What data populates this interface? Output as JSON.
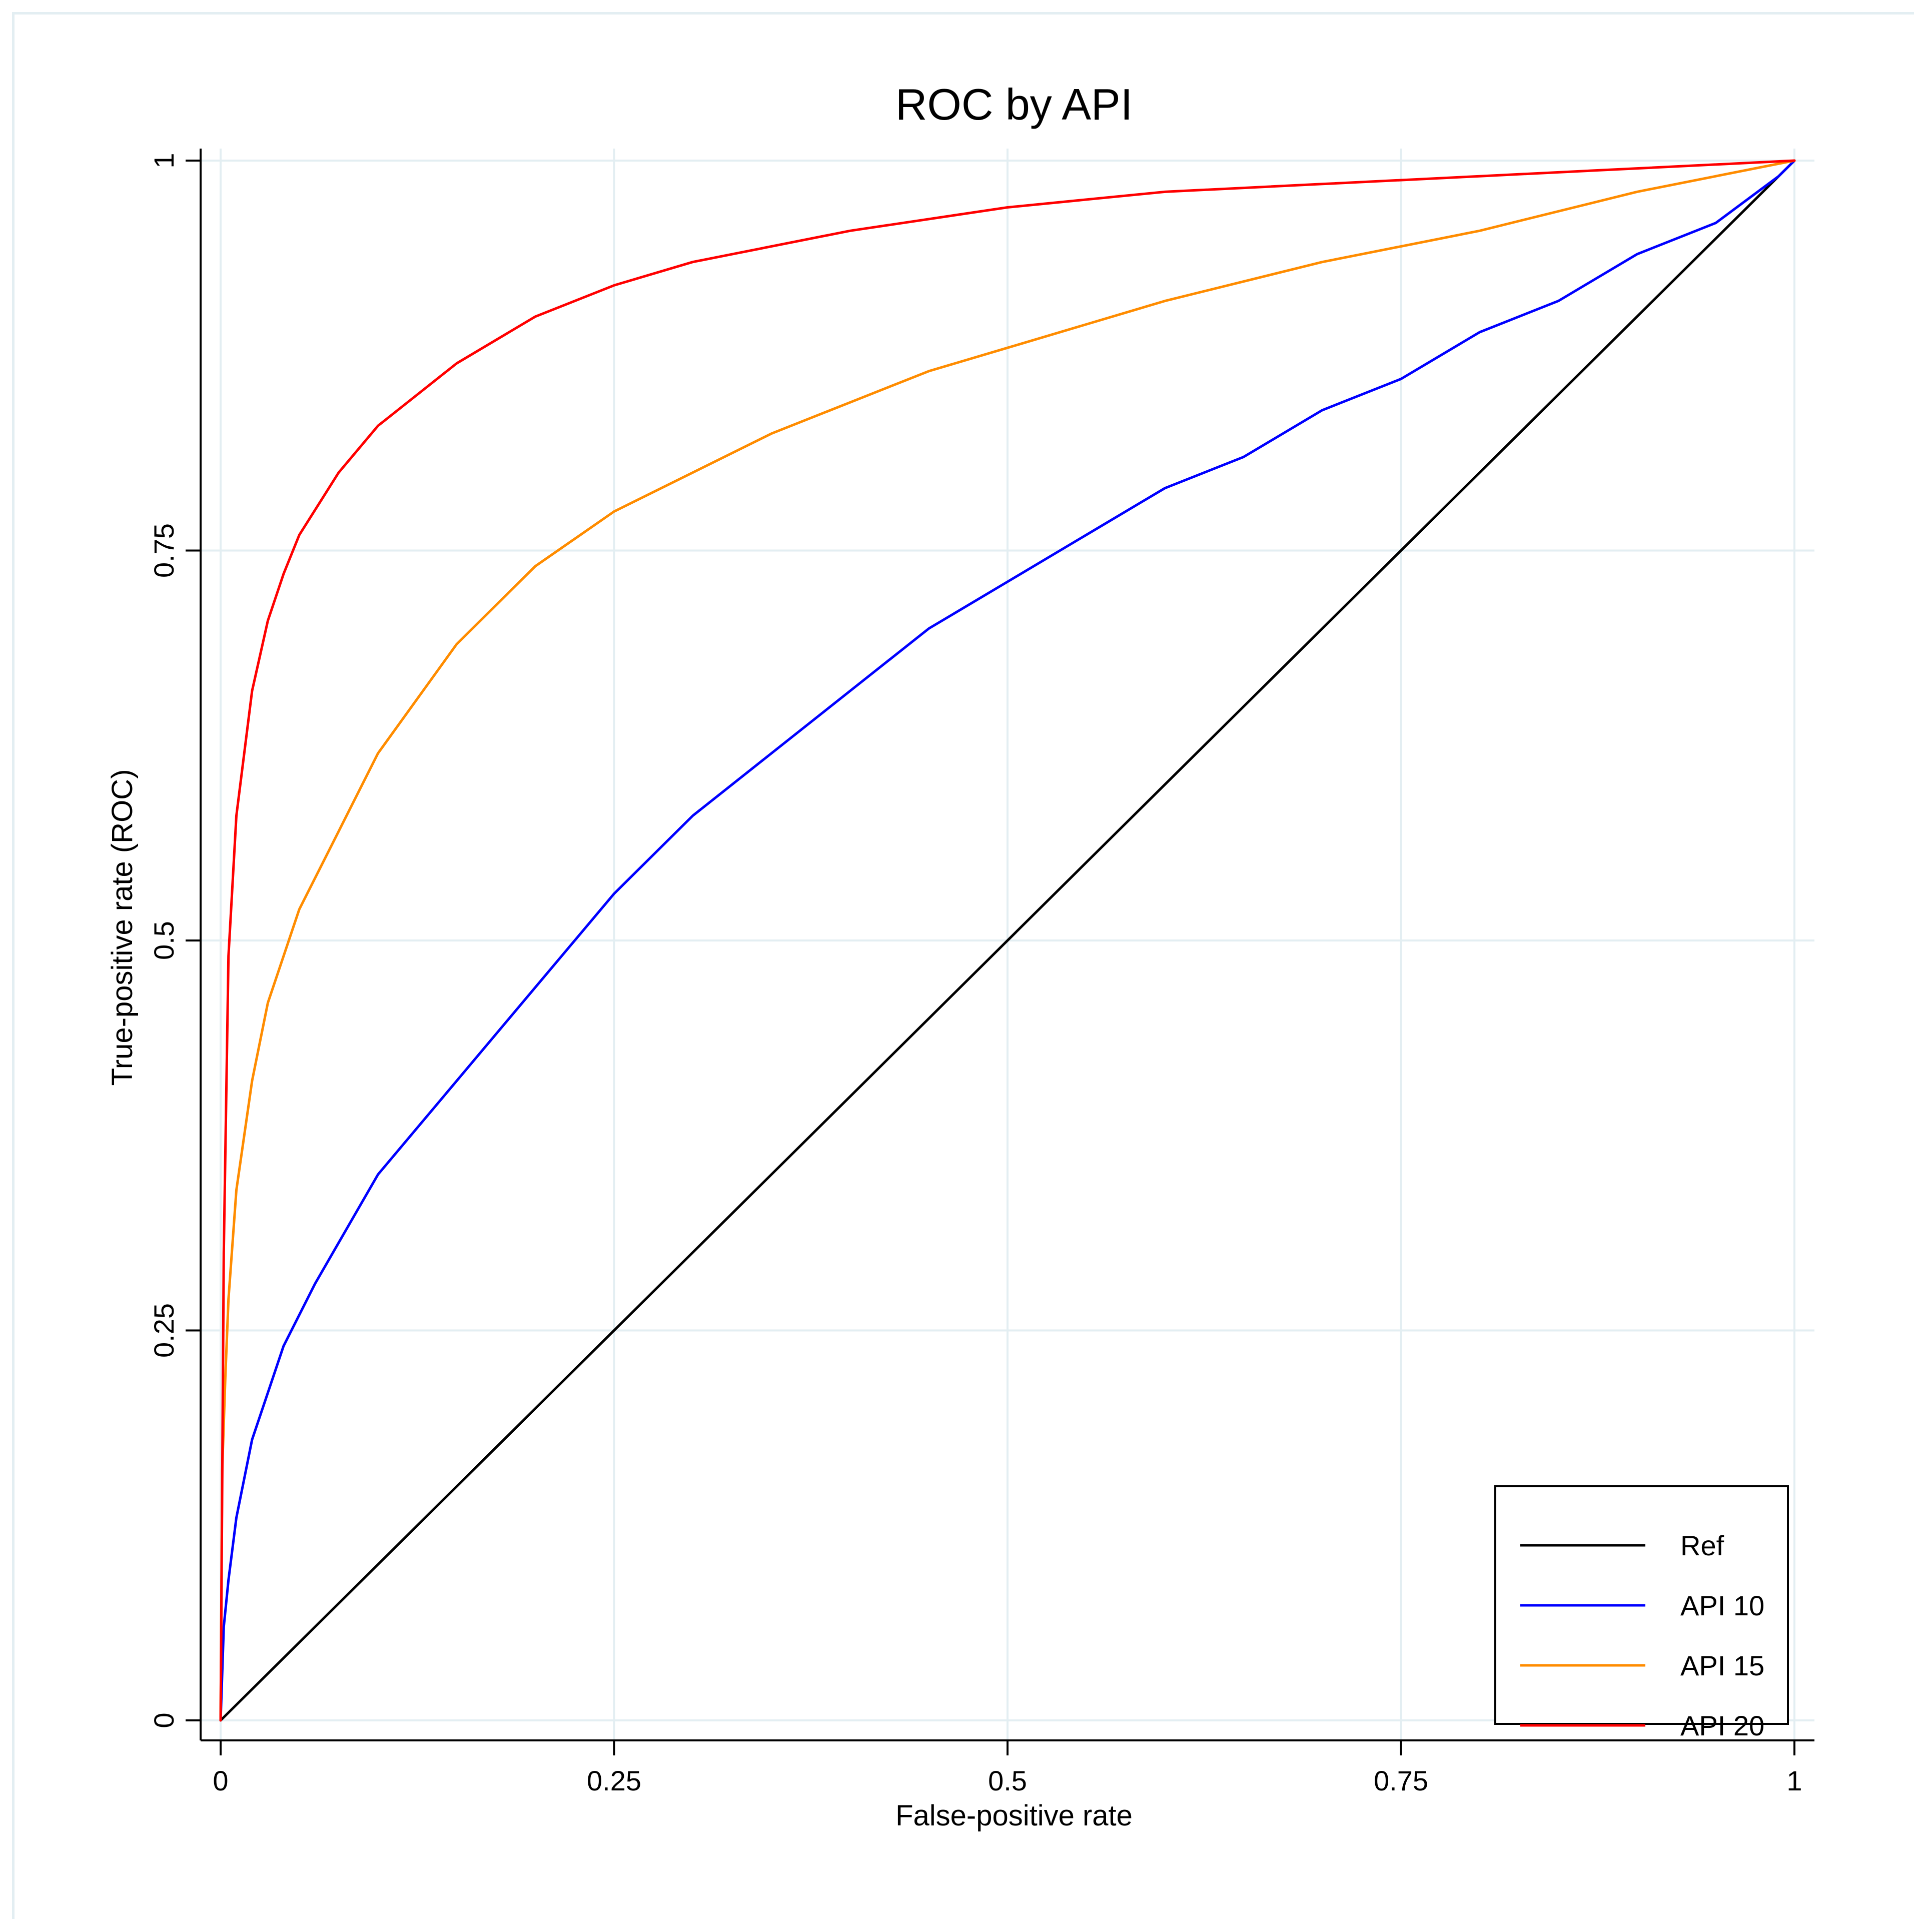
{
  "chart_data": {
    "type": "line",
    "title": "ROC by API",
    "xlabel": "False-positive rate",
    "ylabel": "True-positive rate (ROC)",
    "xlim": [
      0,
      1
    ],
    "ylim": [
      0,
      1
    ],
    "xticks": [
      0,
      0.25,
      0.5,
      0.75,
      1
    ],
    "xtick_labels": [
      "0",
      "0.25",
      "0.5",
      "0.75",
      "1"
    ],
    "yticks": [
      0,
      0.25,
      0.5,
      0.75,
      1
    ],
    "ytick_labels": [
      "0",
      "0.25",
      "0.5",
      "0.75",
      "1"
    ],
    "grid": true,
    "legend_position": "bottom-right",
    "series": [
      {
        "name": "Ref",
        "color": "#000000",
        "x": [
          0,
          1
        ],
        "y": [
          0,
          1
        ]
      },
      {
        "name": "API 10",
        "color": "#0000ff",
        "x": [
          0,
          0.002,
          0.005,
          0.01,
          0.02,
          0.04,
          0.06,
          0.1,
          0.15,
          0.2,
          0.25,
          0.3,
          0.35,
          0.4,
          0.45,
          0.5,
          0.55,
          0.6,
          0.65,
          0.7,
          0.75,
          0.8,
          0.85,
          0.9,
          0.95,
          0.99,
          1
        ],
        "y": [
          0,
          0.06,
          0.09,
          0.13,
          0.18,
          0.24,
          0.28,
          0.35,
          0.41,
          0.47,
          0.53,
          0.58,
          0.62,
          0.66,
          0.7,
          0.73,
          0.76,
          0.79,
          0.81,
          0.84,
          0.86,
          0.89,
          0.91,
          0.94,
          0.96,
          0.99,
          1
        ]
      },
      {
        "name": "API 15",
        "color": "#ff8c00",
        "x": [
          0,
          0.001,
          0.003,
          0.005,
          0.01,
          0.02,
          0.03,
          0.05,
          0.075,
          0.1,
          0.15,
          0.2,
          0.25,
          0.3,
          0.35,
          0.4,
          0.45,
          0.5,
          0.6,
          0.7,
          0.8,
          0.9,
          1
        ],
        "y": [
          0,
          0.16,
          0.22,
          0.27,
          0.34,
          0.41,
          0.46,
          0.52,
          0.57,
          0.62,
          0.69,
          0.74,
          0.775,
          0.8,
          0.825,
          0.845,
          0.865,
          0.88,
          0.91,
          0.935,
          0.955,
          0.98,
          1
        ]
      },
      {
        "name": "API 20",
        "color": "#ff0000",
        "x": [
          0,
          0.002,
          0.005,
          0.01,
          0.02,
          0.03,
          0.04,
          0.05,
          0.075,
          0.1,
          0.125,
          0.15,
          0.2,
          0.25,
          0.3,
          0.4,
          0.5,
          0.6,
          0.7,
          0.8,
          0.9,
          1
        ],
        "y": [
          0,
          0.3,
          0.49,
          0.58,
          0.66,
          0.705,
          0.735,
          0.76,
          0.8,
          0.83,
          0.85,
          0.87,
          0.9,
          0.92,
          0.935,
          0.955,
          0.97,
          0.98,
          0.985,
          0.99,
          0.995,
          1
        ]
      }
    ]
  }
}
